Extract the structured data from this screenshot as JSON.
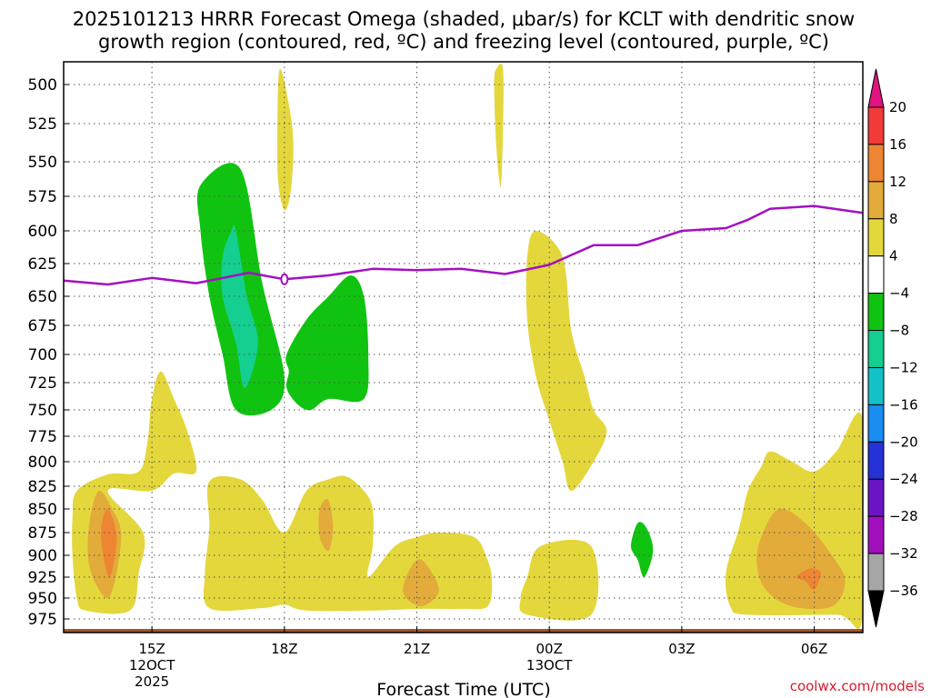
{
  "chart_data": {
    "type": "contour",
    "title_line1": "2025101213 HRRR Forecast Omega (shaded, μbar/s) for KCLT with dendritic snow",
    "title_line2": "growth region (contoured, red, ºC) and freezing level (contoured, purple, ºC)",
    "xlabel": "Forecast Time (UTC)",
    "credit": "coolwx.com/models",
    "y_axis": {
      "label": "",
      "units": "mb",
      "range": [
        490,
        990
      ],
      "ticks": [
        "500",
        "525",
        "550",
        "575",
        "600",
        "625",
        "650",
        "675",
        "700",
        "725",
        "750",
        "775",
        "800",
        "825",
        "850",
        "875",
        "900",
        "925",
        "950",
        "975"
      ]
    },
    "x_axis": {
      "range_hours_after_12Z": [
        1.0,
        19.1
      ],
      "ticks": [
        {
          "hour": 3,
          "label": "15Z",
          "sub1": "12OCT",
          "sub2": "2025"
        },
        {
          "hour": 6,
          "label": "18Z",
          "sub1": "",
          "sub2": ""
        },
        {
          "hour": 9,
          "label": "21Z",
          "sub1": "",
          "sub2": ""
        },
        {
          "hour": 12,
          "label": "00Z",
          "sub1": "13OCT",
          "sub2": ""
        },
        {
          "hour": 15,
          "label": "03Z",
          "sub1": "",
          "sub2": ""
        },
        {
          "hour": 18,
          "label": "06Z",
          "sub1": "",
          "sub2": ""
        }
      ]
    },
    "colorbar": {
      "levels": [
        "20",
        "16",
        "12",
        "8",
        "4",
        "−4",
        "−8",
        "−12",
        "−16",
        "−20",
        "−24",
        "−28",
        "−32",
        "−36"
      ],
      "colors": {
        "top_arrow": "#e0157f",
        "16_to_20": "#f23a3a",
        "12_to_16": "#ee8532",
        "8_to_12": "#e2ab3a",
        "4_to_8": "#e4d73c",
        "-4_to_4": "#ffffff",
        "-8_to_-4": "#11c311",
        "-12_to_-8": "#14cf8f",
        "-16_to_-12": "#13c2c6",
        "-20_to_-16": "#1b8cf0",
        "-24_to_-20": "#2432d8",
        "-28_to_-24": "#6a14c6",
        "-32_to_-28": "#a20fbd",
        "-36_to_-32": "#a6a6a6",
        "bottom_arrow": "#000000"
      }
    },
    "freezing_level": {
      "color": "#a40fc2",
      "points": [
        [
          1.0,
          638
        ],
        [
          2.0,
          641
        ],
        [
          3.0,
          636
        ],
        [
          4.0,
          640
        ],
        [
          5.2,
          632
        ],
        [
          6.0,
          637
        ],
        [
          7.0,
          634
        ],
        [
          8.0,
          629
        ],
        [
          9.0,
          630
        ],
        [
          10.0,
          629
        ],
        [
          11.0,
          633
        ],
        [
          12.0,
          626
        ],
        [
          13.0,
          611
        ],
        [
          14.0,
          611
        ],
        [
          15.0,
          600
        ],
        [
          16.0,
          598
        ],
        [
          16.5,
          592
        ],
        [
          17.0,
          584
        ],
        [
          18.0,
          582
        ],
        [
          19.1,
          587
        ]
      ]
    },
    "surface_ground": {
      "level_mb": 987,
      "color": "#a0522d"
    },
    "omega_regions": [
      {
        "value_range": "4 to 8",
        "color": "#e4d73c",
        "points": [
          [
            5.9,
            490
          ],
          [
            6.05,
            505
          ],
          [
            6.2,
            535
          ],
          [
            6.15,
            570
          ],
          [
            6.0,
            585
          ],
          [
            5.85,
            560
          ],
          [
            5.85,
            510
          ]
        ]
      },
      {
        "value_range": "4 to 8",
        "color": "#e4d73c",
        "points": [
          [
            10.8,
            490
          ],
          [
            10.95,
            490
          ],
          [
            10.95,
            530
          ],
          [
            10.9,
            568
          ],
          [
            10.8,
            540
          ],
          [
            10.75,
            500
          ]
        ]
      },
      {
        "value_range": "-8 to -4",
        "color": "#11c311",
        "points": [
          [
            4.1,
            567
          ],
          [
            5.0,
            555
          ],
          [
            5.5,
            640
          ],
          [
            6.0,
            720
          ],
          [
            5.7,
            750
          ],
          [
            4.9,
            750
          ],
          [
            4.6,
            700
          ],
          [
            4.3,
            650
          ],
          [
            4.1,
            600
          ]
        ]
      },
      {
        "value_range": "-12 to -8",
        "color": "#14cf8f",
        "points": [
          [
            4.9,
            600
          ],
          [
            5.15,
            650
          ],
          [
            5.4,
            690
          ],
          [
            5.1,
            730
          ],
          [
            4.9,
            690
          ],
          [
            4.6,
            650
          ],
          [
            4.6,
            620
          ],
          [
            4.8,
            600
          ]
        ]
      },
      {
        "value_range": "-8 to -4",
        "color": "#11c311",
        "points": [
          [
            6.05,
            700
          ],
          [
            6.5,
            670
          ],
          [
            7.0,
            650
          ],
          [
            7.5,
            634
          ],
          [
            7.8,
            650
          ],
          [
            7.9,
            700
          ],
          [
            7.8,
            740
          ],
          [
            7.0,
            740
          ],
          [
            6.6,
            750
          ],
          [
            6.3,
            745
          ],
          [
            6.05,
            730
          ],
          [
            6.1,
            715
          ]
        ]
      },
      {
        "value_range": "4 to 8",
        "color": "#e4d73c",
        "points": [
          [
            11.5,
            620
          ],
          [
            11.7,
            600
          ],
          [
            12.3,
            620
          ],
          [
            12.5,
            680
          ],
          [
            12.8,
            720
          ],
          [
            13.0,
            750
          ],
          [
            13.3,
            770
          ],
          [
            13.0,
            800
          ],
          [
            12.5,
            830
          ],
          [
            12.3,
            800
          ],
          [
            12.0,
            760
          ],
          [
            11.7,
            720
          ],
          [
            11.5,
            670
          ]
        ]
      },
      {
        "value_range": "4 to 8",
        "color": "#e4d73c",
        "points": [
          [
            1.3,
            830
          ],
          [
            2.0,
            813
          ],
          [
            2.7,
            810
          ],
          [
            2.9,
            780
          ],
          [
            3.0,
            740
          ],
          [
            3.2,
            715
          ],
          [
            3.5,
            740
          ],
          [
            3.8,
            770
          ],
          [
            4.0,
            810
          ],
          [
            3.5,
            812
          ],
          [
            3.0,
            830
          ],
          [
            2.0,
            830
          ],
          [
            2.8,
            875
          ],
          [
            2.7,
            920
          ],
          [
            2.5,
            965
          ],
          [
            1.5,
            965
          ],
          [
            1.3,
            950
          ],
          [
            1.2,
            900
          ],
          [
            1.2,
            860
          ]
        ]
      },
      {
        "value_range": "8 to 12",
        "color": "#e2ab3a",
        "points": [
          [
            1.8,
            830
          ],
          [
            2.1,
            850
          ],
          [
            2.3,
            875
          ],
          [
            2.2,
            920
          ],
          [
            2.0,
            950
          ],
          [
            1.7,
            930
          ],
          [
            1.55,
            900
          ],
          [
            1.6,
            860
          ]
        ]
      },
      {
        "value_range": "12 to 16",
        "color": "#ee8532",
        "points": [
          [
            2.0,
            850
          ],
          [
            2.2,
            880
          ],
          [
            2.05,
            925
          ],
          [
            1.9,
            900
          ],
          [
            1.85,
            870
          ]
        ]
      },
      {
        "value_range": "4 to 8",
        "color": "#e4d73c",
        "points": [
          [
            4.3,
            820
          ],
          [
            5.0,
            818
          ],
          [
            5.5,
            840
          ],
          [
            6.0,
            875
          ],
          [
            6.5,
            830
          ],
          [
            7.0,
            818
          ],
          [
            7.4,
            815
          ],
          [
            7.8,
            830
          ],
          [
            8.0,
            850
          ],
          [
            8.0,
            890
          ],
          [
            7.9,
            925
          ],
          [
            8.5,
            890
          ],
          [
            9.0,
            880
          ],
          [
            9.5,
            875
          ],
          [
            10.3,
            880
          ],
          [
            10.6,
            905
          ],
          [
            10.7,
            930
          ],
          [
            10.6,
            960
          ],
          [
            10.0,
            963
          ],
          [
            9.0,
            963
          ],
          [
            8.0,
            965
          ],
          [
            6.5,
            965
          ],
          [
            6.0,
            958
          ],
          [
            5.5,
            962
          ],
          [
            4.3,
            962
          ],
          [
            4.2,
            920
          ],
          [
            4.3,
            870
          ]
        ]
      },
      {
        "value_range": "8 to 12",
        "color": "#e2ab3a",
        "points": [
          [
            6.8,
            850
          ],
          [
            7.0,
            840
          ],
          [
            7.1,
            870
          ],
          [
            7.0,
            895
          ],
          [
            6.8,
            880
          ]
        ]
      },
      {
        "value_range": "8 to 12",
        "color": "#e2ab3a",
        "points": [
          [
            8.8,
            920
          ],
          [
            9.1,
            905
          ],
          [
            9.5,
            940
          ],
          [
            9.1,
            960
          ],
          [
            8.7,
            945
          ]
        ]
      },
      {
        "value_range": "4 to 8",
        "color": "#e4d73c",
        "points": [
          [
            11.5,
            925
          ],
          [
            11.8,
            890
          ],
          [
            12.95,
            890
          ],
          [
            12.95,
            970
          ],
          [
            11.5,
            970
          ],
          [
            11.35,
            950
          ]
        ]
      },
      {
        "value_range": "-8 to -4",
        "color": "#11c311",
        "points": [
          [
            14.0,
            865
          ],
          [
            14.2,
            870
          ],
          [
            14.35,
            895
          ],
          [
            14.15,
            925
          ],
          [
            14.0,
            905
          ],
          [
            13.85,
            890
          ]
        ]
      },
      {
        "value_range": "4 to 8",
        "color": "#e4d73c",
        "points": [
          [
            16.0,
            920
          ],
          [
            16.3,
            870
          ],
          [
            16.5,
            830
          ],
          [
            16.8,
            805
          ],
          [
            17.0,
            790
          ],
          [
            17.5,
            800
          ],
          [
            18.0,
            810
          ],
          [
            18.5,
            790
          ],
          [
            19.1,
            760
          ],
          [
            19.1,
            970
          ],
          [
            18.5,
            970
          ],
          [
            16.5,
            970
          ],
          [
            16.1,
            960
          ]
        ]
      },
      {
        "value_range": "8 to 12",
        "color": "#e2ab3a",
        "points": [
          [
            16.8,
            880
          ],
          [
            17.2,
            850
          ],
          [
            17.8,
            865
          ],
          [
            18.4,
            900
          ],
          [
            18.7,
            930
          ],
          [
            18.4,
            960
          ],
          [
            17.5,
            960
          ],
          [
            16.9,
            940
          ],
          [
            16.7,
            910
          ]
        ]
      },
      {
        "value_range": "12 to 16",
        "color": "#ee8532",
        "points": [
          [
            17.6,
            925
          ],
          [
            17.9,
            915
          ],
          [
            18.15,
            920
          ],
          [
            18.0,
            940
          ],
          [
            17.8,
            930
          ]
        ]
      }
    ]
  }
}
